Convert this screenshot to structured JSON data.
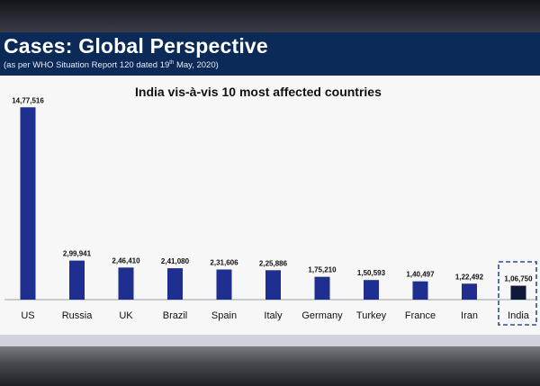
{
  "slide": {
    "title": "Cases: Global Perspective",
    "subtitle_main": "(as per WHO Situation Report 120 dated 19",
    "subtitle_sup": "th",
    "subtitle_end": " May, 2020)"
  },
  "colors": {
    "bar": "#1f2f8f",
    "highlight_bar": "#0f1a3a",
    "header_band": "#0c2a58",
    "highlight_box": "#2a4fa0"
  },
  "chart_data": {
    "type": "bar",
    "title": "India vis-à-vis 10 most affected countries",
    "xlabel": "",
    "ylabel": "",
    "ylim": [
      0,
      1500000
    ],
    "categories": [
      "US",
      "Russia",
      "UK",
      "Brazil",
      "Spain",
      "Italy",
      "Germany",
      "Turkey",
      "France",
      "Iran",
      "India"
    ],
    "values": [
      1477516,
      299941,
      246410,
      241080,
      231606,
      225886,
      175210,
      150593,
      140497,
      122492,
      106750
    ],
    "value_labels": [
      "14,77,516",
      "2,99,941",
      "2,46,410",
      "2,41,080",
      "2,31,606",
      "2,25,886",
      "1,75,210",
      "1,50,593",
      "1,40,497",
      "1,22,492",
      "1,06,750"
    ],
    "highlight": "India"
  }
}
